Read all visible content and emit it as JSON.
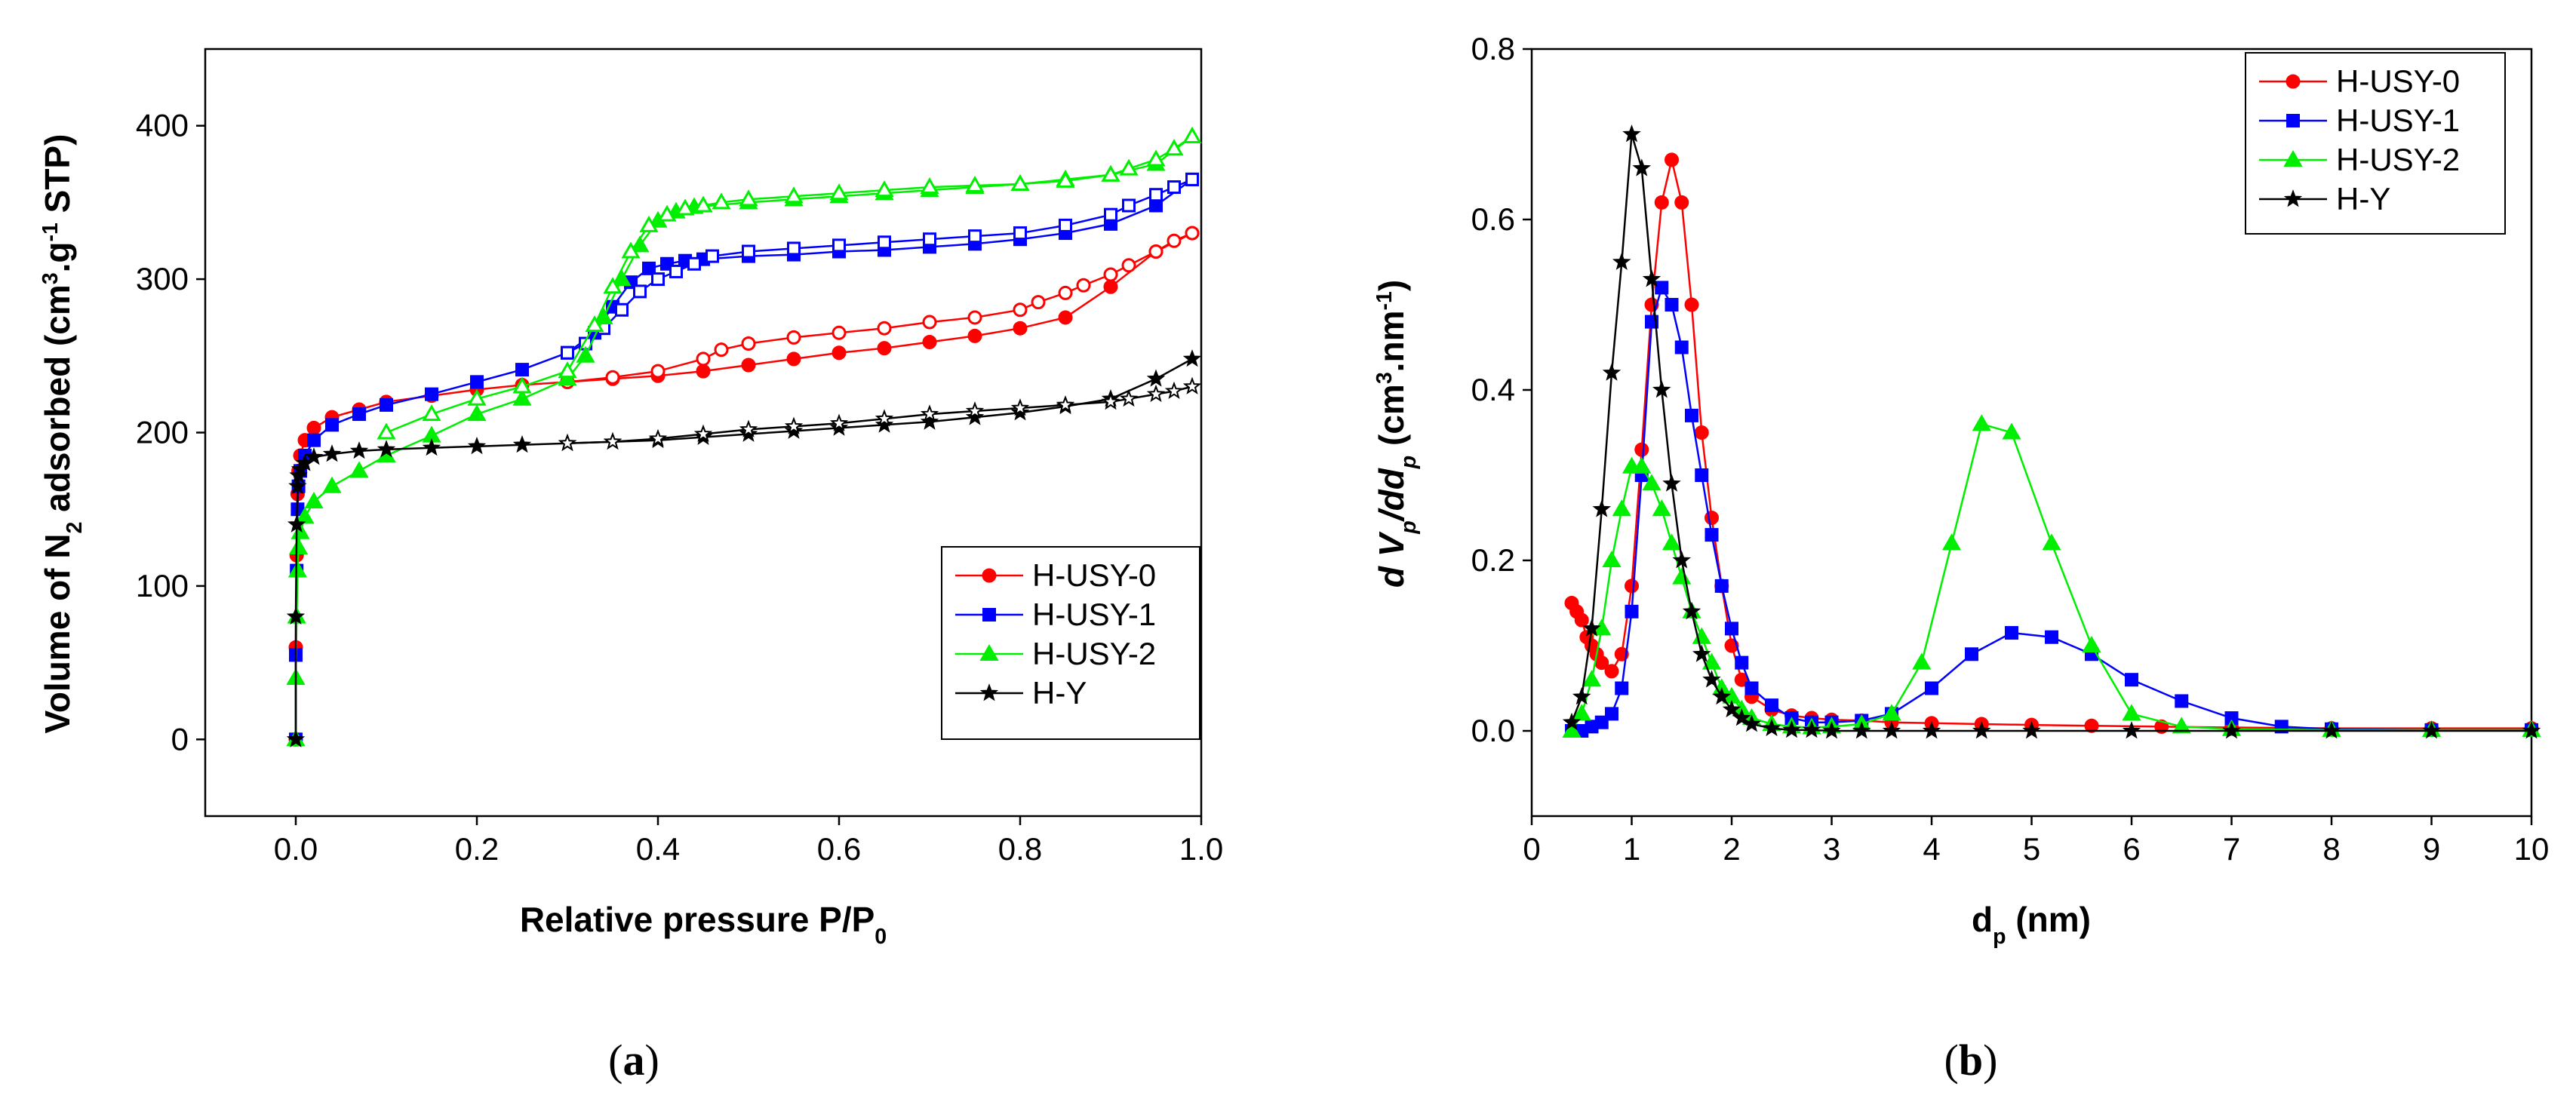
{
  "chart_data": [
    {
      "id": "a",
      "type": "line",
      "caption": "a",
      "xlabel": "Relative pressure P/P",
      "xlabel_sub": "0",
      "ylabel_parts": [
        "Volume of N",
        "2",
        " adsorbed (cm",
        "3",
        ".g",
        "-1",
        " STP)"
      ],
      "xlim": [
        -0.1,
        1.0
      ],
      "ylim": [
        -50,
        450
      ],
      "xticks": [
        0.0,
        0.2,
        0.4,
        0.6,
        0.8,
        1.0
      ],
      "xtick_labels": [
        "0.0",
        "0.2",
        "0.4",
        "0.6",
        "0.8",
        "1.0"
      ],
      "yticks": [
        0,
        100,
        200,
        300,
        400
      ],
      "ytick_labels": [
        "0",
        "100",
        "200",
        "300",
        "400"
      ],
      "legend_position": "bottom-right",
      "series": [
        {
          "name": "H-USY-0",
          "color": "#ff0000",
          "marker": "circle",
          "adsorption": {
            "x": [
              0.0,
              0.0,
              0.001,
              0.002,
              0.003,
              0.005,
              0.01,
              0.02,
              0.04,
              0.07,
              0.1,
              0.15,
              0.2,
              0.25,
              0.3,
              0.35,
              0.4,
              0.45,
              0.5,
              0.55,
              0.6,
              0.65,
              0.7,
              0.75,
              0.8,
              0.85,
              0.9,
              0.95,
              0.99
            ],
            "y": [
              0,
              60,
              120,
              160,
              175,
              185,
              195,
              203,
              210,
              215,
              220,
              224,
              228,
              231,
              233,
              235,
              237,
              240,
              244,
              248,
              252,
              255,
              259,
              263,
              268,
              275,
              295,
              318,
              330
            ]
          },
          "desorption": {
            "x": [
              0.99,
              0.97,
              0.95,
              0.92,
              0.9,
              0.87,
              0.85,
              0.82,
              0.8,
              0.75,
              0.7,
              0.65,
              0.6,
              0.55,
              0.5,
              0.47,
              0.45,
              0.4,
              0.35,
              0.3
            ],
            "y": [
              330,
              325,
              318,
              309,
              303,
              296,
              291,
              285,
              280,
              275,
              272,
              268,
              265,
              262,
              258,
              254,
              248,
              240,
              236,
              233
            ]
          }
        },
        {
          "name": "H-USY-1",
          "color": "#0000ff",
          "marker": "square",
          "adsorption": {
            "x": [
              0.0,
              0.0,
              0.001,
              0.002,
              0.003,
              0.005,
              0.01,
              0.02,
              0.04,
              0.07,
              0.1,
              0.15,
              0.2,
              0.25,
              0.3,
              0.33,
              0.35,
              0.37,
              0.39,
              0.41,
              0.43,
              0.45,
              0.5,
              0.55,
              0.6,
              0.65,
              0.7,
              0.75,
              0.8,
              0.85,
              0.9,
              0.95,
              0.99
            ],
            "y": [
              0,
              55,
              110,
              150,
              165,
              175,
              185,
              195,
              205,
              212,
              218,
              225,
              233,
              241,
              252,
              265,
              282,
              298,
              307,
              310,
              312,
              313,
              315,
              316,
              318,
              319,
              321,
              323,
              326,
              330,
              336,
              348,
              365
            ]
          },
          "desorption": {
            "x": [
              0.99,
              0.97,
              0.95,
              0.92,
              0.9,
              0.85,
              0.8,
              0.75,
              0.7,
              0.65,
              0.6,
              0.55,
              0.5,
              0.46,
              0.44,
              0.42,
              0.4,
              0.38,
              0.36,
              0.34,
              0.32,
              0.3
            ],
            "y": [
              365,
              360,
              355,
              348,
              342,
              335,
              330,
              328,
              326,
              324,
              322,
              320,
              318,
              315,
              310,
              305,
              300,
              292,
              280,
              268,
              258,
              252
            ]
          }
        },
        {
          "name": "H-USY-2",
          "color": "#00ee00",
          "marker": "triangle",
          "adsorption": {
            "x": [
              0.0,
              0.0,
              0.001,
              0.002,
              0.003,
              0.005,
              0.01,
              0.02,
              0.04,
              0.07,
              0.1,
              0.15,
              0.2,
              0.25,
              0.3,
              0.32,
              0.34,
              0.36,
              0.38,
              0.4,
              0.42,
              0.44,
              0.5,
              0.55,
              0.6,
              0.65,
              0.7,
              0.75,
              0.8,
              0.85,
              0.9,
              0.95,
              0.99
            ],
            "y": [
              0,
              40,
              80,
              110,
              125,
              135,
              145,
              155,
              165,
              175,
              185,
              198,
              212,
              222,
              235,
              250,
              275,
              300,
              322,
              338,
              344,
              347,
              350,
              352,
              354,
              356,
              358,
              360,
              362,
              365,
              368,
              375,
              393
            ]
          },
          "desorption": {
            "x": [
              0.99,
              0.97,
              0.95,
              0.92,
              0.9,
              0.85,
              0.8,
              0.75,
              0.7,
              0.65,
              0.6,
              0.55,
              0.5,
              0.47,
              0.45,
              0.43,
              0.41,
              0.39,
              0.37,
              0.35,
              0.33,
              0.3,
              0.25,
              0.2,
              0.15,
              0.1
            ],
            "y": [
              393,
              385,
              378,
              372,
              368,
              364,
              362,
              361,
              360,
              358,
              356,
              354,
              352,
              350,
              348,
              346,
              342,
              335,
              318,
              295,
              270,
              240,
              230,
              222,
              212,
              200
            ]
          }
        },
        {
          "name": "H-Y",
          "color": "#000000",
          "marker": "star",
          "adsorption": {
            "x": [
              0.0,
              0.0,
              0.001,
              0.002,
              0.003,
              0.005,
              0.01,
              0.02,
              0.04,
              0.07,
              0.1,
              0.15,
              0.2,
              0.25,
              0.3,
              0.35,
              0.4,
              0.45,
              0.5,
              0.55,
              0.6,
              0.65,
              0.7,
              0.75,
              0.8,
              0.85,
              0.9,
              0.95,
              0.99
            ],
            "y": [
              0,
              80,
              140,
              165,
              172,
              176,
              180,
              184,
              186,
              188,
              189,
              190,
              191,
              192,
              193,
              194,
              195,
              197,
              199,
              201,
              203,
              205,
              207,
              210,
              213,
              217,
              222,
              235,
              248
            ]
          },
          "desorption": {
            "x": [
              0.99,
              0.97,
              0.95,
              0.92,
              0.9,
              0.85,
              0.8,
              0.75,
              0.7,
              0.65,
              0.6,
              0.55,
              0.5,
              0.45,
              0.4,
              0.35,
              0.3
            ],
            "y": [
              230,
              227,
              225,
              222,
              220,
              218,
              216,
              214,
              212,
              209,
              206,
              204,
              202,
              199,
              196,
              194,
              193
            ]
          }
        }
      ]
    },
    {
      "id": "b",
      "type": "line",
      "caption": "b",
      "xlabel": "d",
      "xlabel_sub": "p",
      "xlabel_suffix": " (nm)",
      "ylabel_parts": [
        "d V",
        "p",
        "/dd",
        "p",
        " (cm",
        "3",
        ".nm",
        "-1",
        ")"
      ],
      "xlim": [
        0,
        10
      ],
      "ylim": [
        -0.1,
        0.8
      ],
      "xticks": [
        0,
        1,
        2,
        3,
        4,
        5,
        6,
        7,
        8,
        9,
        10
      ],
      "xtick_labels": [
        "0",
        "1",
        "2",
        "3",
        "4",
        "5",
        "6",
        "7",
        "8",
        "9",
        "10"
      ],
      "yticks": [
        0.0,
        0.2,
        0.4,
        0.6,
        0.8
      ],
      "ytick_labels": [
        "0.0",
        "0.2",
        "0.4",
        "0.6",
        "0.8"
      ],
      "legend_position": "top-right",
      "series": [
        {
          "name": "H-USY-0",
          "color": "#ff0000",
          "marker": "circle",
          "x": [
            0.4,
            0.45,
            0.5,
            0.55,
            0.6,
            0.65,
            0.7,
            0.8,
            0.9,
            1.0,
            1.1,
            1.2,
            1.3,
            1.4,
            1.5,
            1.6,
            1.7,
            1.8,
            1.9,
            2.0,
            2.1,
            2.2,
            2.4,
            2.6,
            2.8,
            3.0,
            3.3,
            3.6,
            4.0,
            4.5,
            5.0,
            5.6,
            6.3,
            7.0,
            8.0,
            9.0,
            10.0
          ],
          "y": [
            0.15,
            0.14,
            0.13,
            0.11,
            0.1,
            0.09,
            0.08,
            0.07,
            0.09,
            0.17,
            0.33,
            0.5,
            0.62,
            0.67,
            0.62,
            0.5,
            0.35,
            0.25,
            0.17,
            0.1,
            0.06,
            0.04,
            0.025,
            0.018,
            0.015,
            0.013,
            0.012,
            0.01,
            0.009,
            0.008,
            0.007,
            0.006,
            0.005,
            0.004,
            0.003,
            0.003,
            0.003
          ]
        },
        {
          "name": "H-USY-1",
          "color": "#0000ff",
          "marker": "square",
          "x": [
            0.4,
            0.5,
            0.6,
            0.7,
            0.8,
            0.9,
            1.0,
            1.1,
            1.2,
            1.3,
            1.4,
            1.5,
            1.6,
            1.7,
            1.8,
            1.9,
            2.0,
            2.1,
            2.2,
            2.4,
            2.6,
            2.8,
            3.0,
            3.3,
            3.6,
            4.0,
            4.4,
            4.8,
            5.2,
            5.6,
            6.0,
            6.5,
            7.0,
            7.5,
            8.0,
            9.0,
            10.0
          ],
          "y": [
            0.0,
            0.0,
            0.005,
            0.01,
            0.02,
            0.05,
            0.14,
            0.3,
            0.48,
            0.52,
            0.5,
            0.45,
            0.37,
            0.3,
            0.23,
            0.17,
            0.12,
            0.08,
            0.05,
            0.03,
            0.015,
            0.01,
            0.01,
            0.012,
            0.02,
            0.05,
            0.09,
            0.115,
            0.11,
            0.09,
            0.06,
            0.035,
            0.015,
            0.005,
            0.002,
            0.001,
            0.001
          ]
        },
        {
          "name": "H-USY-2",
          "color": "#00ee00",
          "marker": "triangle",
          "x": [
            0.4,
            0.5,
            0.6,
            0.7,
            0.8,
            0.9,
            1.0,
            1.1,
            1.2,
            1.3,
            1.4,
            1.5,
            1.6,
            1.7,
            1.8,
            1.9,
            2.0,
            2.1,
            2.2,
            2.4,
            2.6,
            2.8,
            3.0,
            3.3,
            3.6,
            3.9,
            4.2,
            4.5,
            4.8,
            5.2,
            5.6,
            6.0,
            6.5,
            7.0,
            8.0,
            9.0,
            10.0
          ],
          "y": [
            0.0,
            0.02,
            0.06,
            0.12,
            0.2,
            0.26,
            0.31,
            0.31,
            0.29,
            0.26,
            0.22,
            0.18,
            0.14,
            0.11,
            0.08,
            0.05,
            0.04,
            0.025,
            0.015,
            0.008,
            0.005,
            0.004,
            0.005,
            0.008,
            0.02,
            0.08,
            0.22,
            0.36,
            0.35,
            0.22,
            0.1,
            0.02,
            0.005,
            0.002,
            0.001,
            0.001,
            0.001
          ]
        },
        {
          "name": "H-Y",
          "color": "#000000",
          "marker": "star",
          "x": [
            0.4,
            0.5,
            0.6,
            0.7,
            0.8,
            0.9,
            1.0,
            1.1,
            1.2,
            1.3,
            1.4,
            1.5,
            1.6,
            1.7,
            1.8,
            1.9,
            2.0,
            2.1,
            2.2,
            2.4,
            2.6,
            2.8,
            3.0,
            3.3,
            3.6,
            4.0,
            4.5,
            5.0,
            6.0,
            7.0,
            8.0,
            9.0,
            10.0
          ],
          "y": [
            0.01,
            0.04,
            0.12,
            0.26,
            0.42,
            0.55,
            0.7,
            0.66,
            0.53,
            0.4,
            0.29,
            0.2,
            0.14,
            0.09,
            0.06,
            0.04,
            0.025,
            0.015,
            0.008,
            0.003,
            0.001,
            0.001,
            0.0,
            0.0,
            0.0,
            0.0,
            0.0,
            0.0,
            0.0,
            0.0,
            0.0,
            0.0,
            0.0
          ]
        }
      ]
    }
  ]
}
